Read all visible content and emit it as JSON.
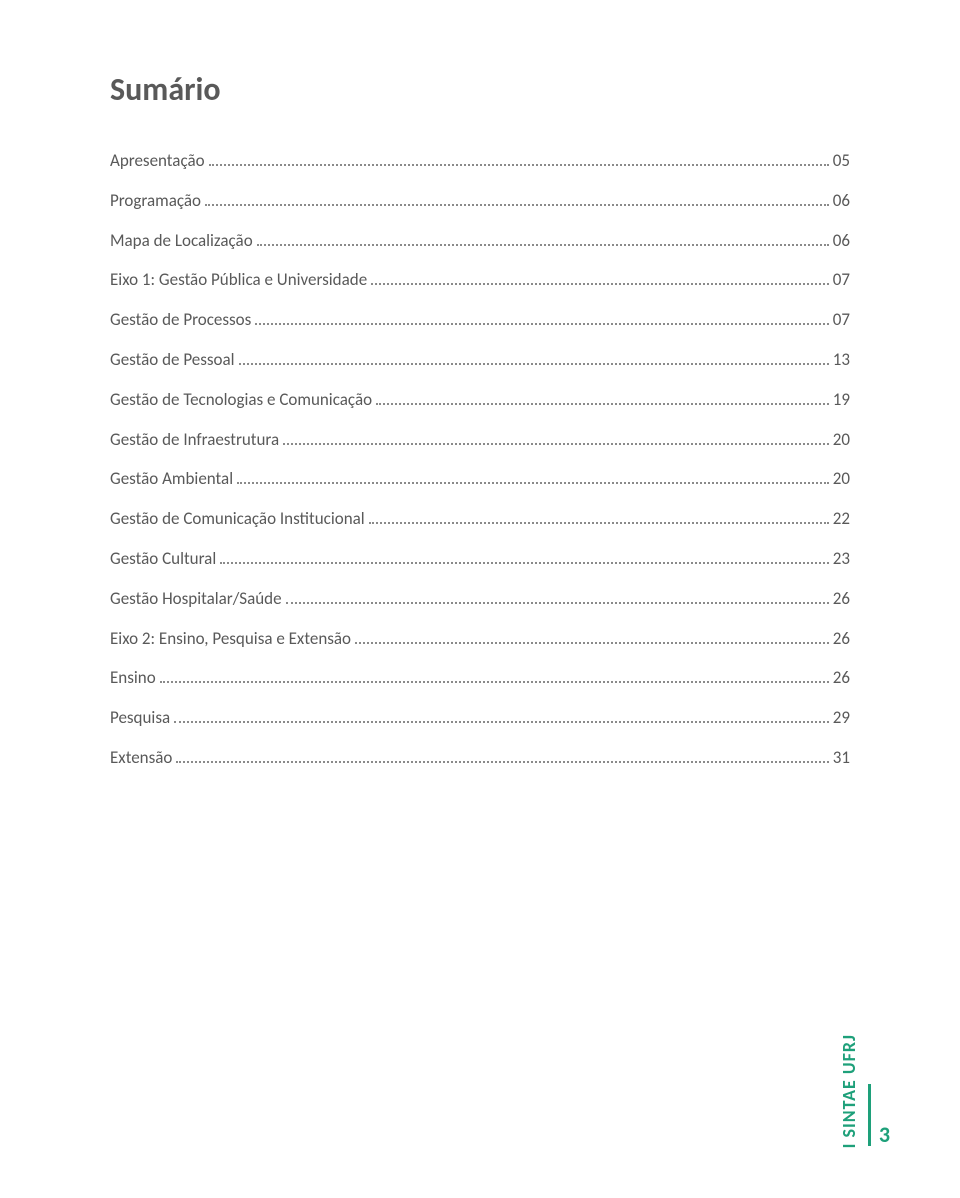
{
  "title": "Sumário",
  "toc": [
    {
      "label": "Apresentação",
      "page": "05"
    },
    {
      "label": "Programação",
      "page": "06"
    },
    {
      "label": "Mapa de Localização",
      "page": "06"
    },
    {
      "label": "Eixo 1: Gestão Pública e Universidade",
      "page": "07"
    },
    {
      "label": "Gestão de Processos",
      "page": "07"
    },
    {
      "label": "Gestão de Pessoal",
      "page": "13"
    },
    {
      "label": "Gestão de Tecnologias e Comunicação",
      "page": "19"
    },
    {
      "label": "Gestão de Infraestrutura",
      "page": "20"
    },
    {
      "label": "Gestão Ambiental",
      "page": "20"
    },
    {
      "label": "Gestão de Comunicação Institucional",
      "page": "22"
    },
    {
      "label": "Gestão Cultural",
      "page": "23"
    },
    {
      "label": "Gestão Hospitalar/Saúde",
      "page": "26"
    },
    {
      "label": "Eixo 2: Ensino, Pesquisa e Extensão",
      "page": "26"
    },
    {
      "label": "Ensino",
      "page": "26"
    },
    {
      "label": "Pesquisa",
      "page": "29"
    },
    {
      "label": "Extensão",
      "page": "31"
    }
  ],
  "footer": {
    "label": "I SINTAE UFRJ",
    "page_number": "3"
  },
  "colors": {
    "text": "#595959",
    "accent": "#1ea07a",
    "background": "#ffffff",
    "dots": "#8a8a8a"
  },
  "typography": {
    "title_fontsize": 32,
    "body_fontsize": 17,
    "footer_fontsize": 18
  }
}
